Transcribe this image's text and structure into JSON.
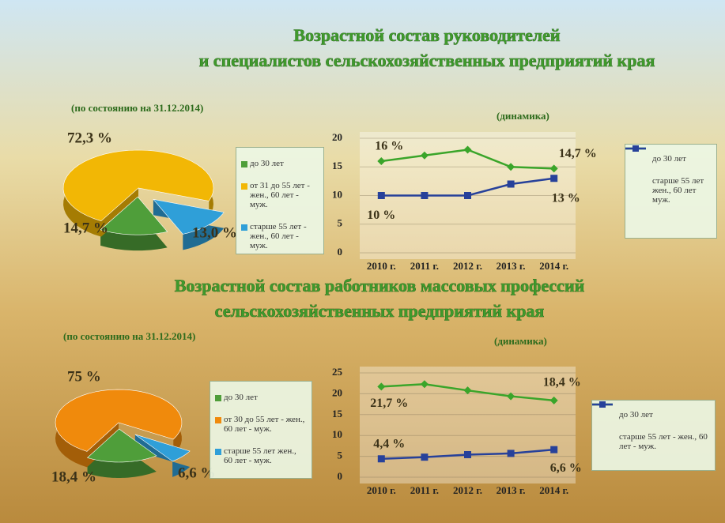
{
  "chart_data": [
    {
      "type": "pie",
      "title": [
        "Возрастной состав руководителей",
        "и специалистов сельскохозяйственных предприятий края"
      ],
      "subtitle": "(по состоянию на 31.12.2014)",
      "categories": [
        "до 30 лет",
        "от 31 до 55 лет - жен., 60 лет - муж.",
        "старше 55 лет - жен., 60 лет - муж."
      ],
      "values": [
        14.7,
        72.3,
        13.0
      ],
      "value_labels": [
        "14,7 %",
        "72,3 %",
        "13,0 %"
      ],
      "colors": [
        "#4f9e3a",
        "#f2b705",
        "#2f9fd8"
      ]
    },
    {
      "type": "line",
      "subtitle": "(динамика)",
      "categories": [
        "2010 г.",
        "2011 г.",
        "2012 г.",
        "2013 г.",
        "2014 г."
      ],
      "series": [
        {
          "name": "до 30 лет",
          "color": "#3aa52a",
          "values": [
            16,
            17,
            18,
            15,
            14.7
          ],
          "value_labels": [
            "16 %",
            null,
            null,
            null,
            "14,7 %"
          ]
        },
        {
          "name": "старше 55 лет жен., 60 лет муж.",
          "color": "#27419a",
          "values": [
            10,
            10,
            10,
            12,
            13
          ],
          "value_labels": [
            "10 %",
            null,
            null,
            null,
            "13 %"
          ]
        }
      ],
      "ylim": [
        0,
        20
      ],
      "yticks": [
        0,
        5,
        10,
        15,
        20
      ]
    },
    {
      "type": "pie",
      "title": [
        "Возрастной состав работников массовых профессий",
        "сельскохозяйственных предприятий края"
      ],
      "subtitle": "(по состоянию на 31.12.2014)",
      "categories": [
        "до 30 лет",
        "от 30 до 55 лет - жен., 60 лет - муж.",
        "старше 55 лет жен., 60 лет - муж."
      ],
      "values": [
        18.4,
        75,
        6.6
      ],
      "value_labels": [
        "18,4 %",
        "75 %",
        "6,6 %"
      ],
      "colors": [
        "#4f9e3a",
        "#f08a0c",
        "#2f9fd8"
      ]
    },
    {
      "type": "line",
      "subtitle": "(динамика)",
      "categories": [
        "2010 г.",
        "2011 г.",
        "2012 г.",
        "2013 г.",
        "2014 г."
      ],
      "series": [
        {
          "name": "до 30 лет",
          "color": "#3aa52a",
          "values": [
            21.7,
            22.3,
            20.8,
            19.4,
            18.4
          ],
          "value_labels": [
            "21,7 %",
            null,
            null,
            null,
            "18,4 %"
          ]
        },
        {
          "name": "старше 55 лет - жен., 60 лет - муж.",
          "color": "#27419a",
          "values": [
            4.4,
            4.8,
            5.4,
            5.7,
            6.6
          ],
          "value_labels": [
            "4,4 %",
            null,
            null,
            null,
            "6,6 %"
          ]
        }
      ],
      "ylim": [
        0,
        25
      ],
      "yticks": [
        0,
        5,
        10,
        15,
        20,
        25
      ]
    }
  ]
}
